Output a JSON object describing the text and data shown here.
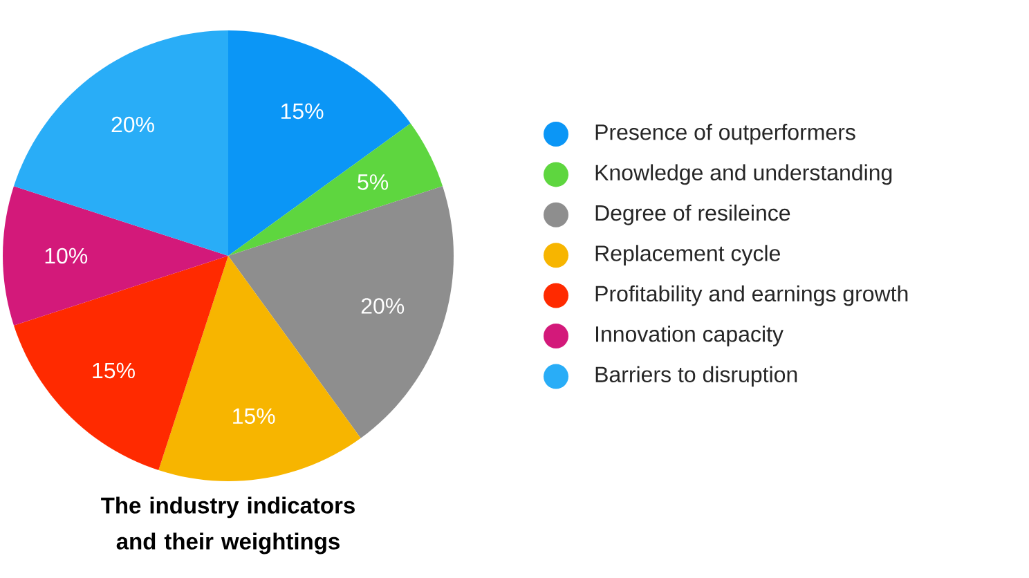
{
  "chart_data": {
    "type": "pie",
    "title": "The industry indicators\nand their weightings",
    "categories": [
      "Presence of outperformers",
      "Knowledge and understanding",
      "Degree of resileince",
      "Replacement cycle",
      "Profitability and earnings growth",
      "Innovation capacity",
      "Barriers to disruption"
    ],
    "values": [
      15,
      5,
      20,
      15,
      15,
      10,
      20
    ],
    "colors": [
      "#0b96f6",
      "#5ed63f",
      "#8e8e8e",
      "#f7b500",
      "#ff2a00",
      "#d3197a",
      "#29adf7"
    ],
    "value_labels": [
      "15%",
      "5%",
      "20%",
      "15%",
      "15%",
      "10%",
      "20%"
    ],
    "legend": "right"
  }
}
